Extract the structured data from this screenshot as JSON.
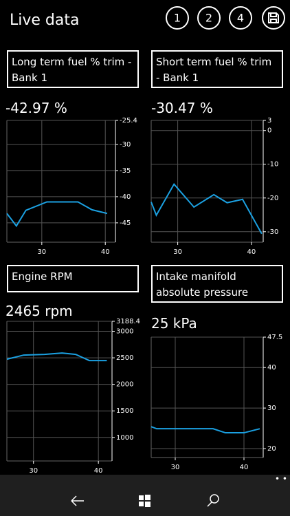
{
  "header": {
    "title": "Live data",
    "buttons": [
      "1",
      "2",
      "4"
    ]
  },
  "chart_data": [
    {
      "type": "line",
      "title": "Long term fuel % trim - Bank 1",
      "reading": "-42.97 %",
      "color": "#1ba1e2",
      "x": [
        24.5,
        26,
        27.5,
        30.8,
        35.7,
        37.9,
        40.3
      ],
      "values": [
        -43.2,
        -45.6,
        -42.6,
        -41,
        -41,
        -42.5,
        -43.2
      ],
      "xlim": [
        24.5,
        41.6
      ],
      "xticks": [
        30,
        40
      ],
      "ylim": [
        -48.7,
        -25.4
      ],
      "yticks": [
        -25.4,
        -30,
        -35,
        -40,
        -45
      ],
      "grid": true
    },
    {
      "type": "line",
      "title": "Short term fuel % trim - Bank 1",
      "reading": "-30.47 %",
      "color": "#1ba1e2",
      "x": [
        26.4,
        27.1,
        29.5,
        32.2,
        34.9,
        36.7,
        38.8,
        41.4
      ],
      "values": [
        -21.2,
        -25.1,
        -15.9,
        -22.7,
        -19,
        -21.4,
        -20.4,
        -30.6
      ],
      "xlim": [
        26.4,
        41.6
      ],
      "xticks": [
        30,
        40
      ],
      "ylim": [
        -33.1,
        3
      ],
      "yticks": [
        3,
        0,
        -10,
        -20,
        -30
      ],
      "grid": true
    },
    {
      "type": "line",
      "title": "Engine RPM",
      "reading": "2465 rpm",
      "color": "#1ba1e2",
      "x": [
        25.9,
        28.5,
        31.7,
        34.4,
        36.5,
        38.6,
        41.3
      ],
      "values": [
        2474,
        2552,
        2565,
        2591,
        2565,
        2448,
        2448
      ],
      "xlim": [
        25.9,
        42.1
      ],
      "xticks": [
        30,
        40
      ],
      "ylim": [
        556,
        3188.4
      ],
      "yticks": [
        3188.4,
        3000,
        2500,
        2000,
        1500,
        1000
      ],
      "grid": true
    },
    {
      "type": "line",
      "title": "Intake manifold absolute pressure",
      "reading": "25 kPa",
      "color": "#1ba1e2",
      "x": [
        26.5,
        27.3,
        35.5,
        37.3,
        40,
        42.3
      ],
      "values": [
        25.4,
        24.9,
        24.9,
        23.9,
        23.9,
        24.9
      ],
      "xlim": [
        26.5,
        42.8
      ],
      "xticks": [
        30,
        40
      ],
      "ylim": [
        17.8,
        47.5
      ],
      "yticks": [
        47.5,
        40,
        30,
        20
      ],
      "grid": true
    }
  ]
}
